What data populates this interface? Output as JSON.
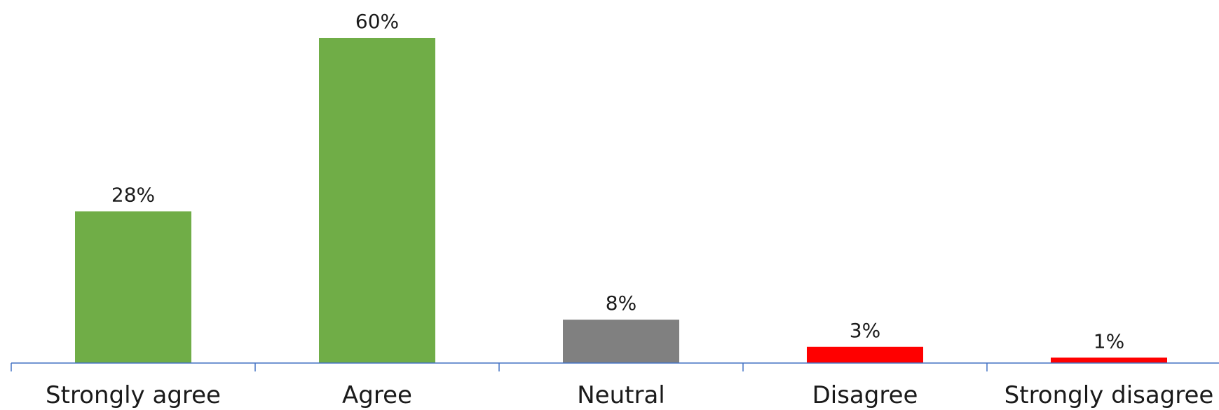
{
  "chart_data": {
    "type": "bar",
    "categories": [
      "Strongly agree",
      "Agree",
      "Neutral",
      "Disagree",
      "Strongly disagree"
    ],
    "values": [
      28,
      60,
      8,
      3,
      1
    ],
    "value_labels": [
      "28%",
      "60%",
      "8%",
      "3%",
      "1%"
    ],
    "bar_colors": [
      "#70ad47",
      "#70ad47",
      "#808080",
      "#ff0000",
      "#ff0000"
    ],
    "axis_color": "#4472c4",
    "title": "",
    "xlabel": "",
    "ylabel": "",
    "ylim": [
      0,
      60
    ],
    "grid": false,
    "legend": "none"
  }
}
